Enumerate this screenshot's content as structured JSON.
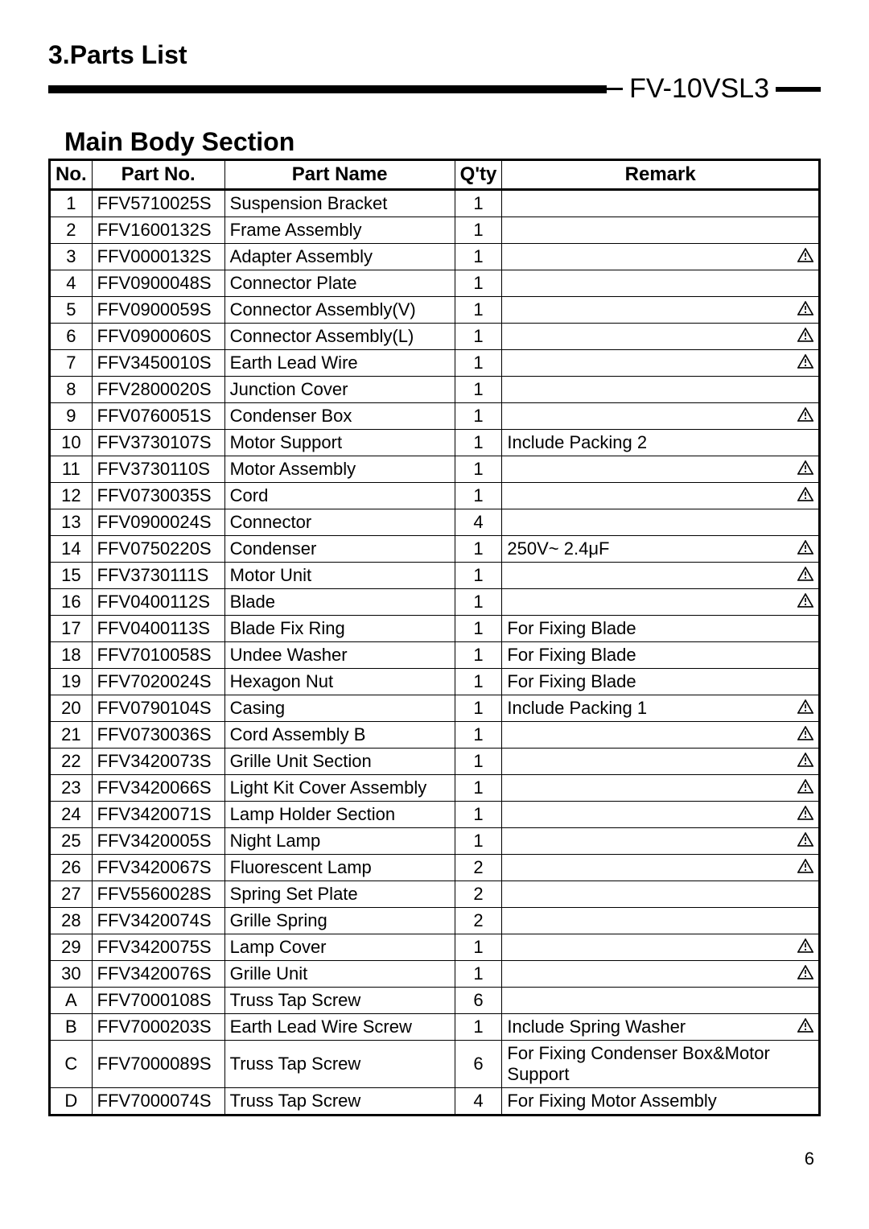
{
  "section_title": "3.Parts List",
  "model": "FV-10VSL3",
  "subsection_title": "Main Body Section",
  "page_number": "6",
  "headers": {
    "no": "No.",
    "partno": "Part No.",
    "name": "Part Name",
    "qty": "Q'ty",
    "remark": "Remark"
  },
  "rows": [
    {
      "no": "1",
      "partno": "FFV5710025S",
      "name": "Suspension Bracket",
      "qty": "1",
      "remark": "",
      "warn": false
    },
    {
      "no": "2",
      "partno": "FFV1600132S",
      "name": "Frame Assembly",
      "qty": "1",
      "remark": "",
      "warn": false
    },
    {
      "no": "3",
      "partno": "FFV0000132S",
      "name": "Adapter Assembly",
      "qty": "1",
      "remark": "",
      "warn": true
    },
    {
      "no": "4",
      "partno": "FFV0900048S",
      "name": "Connector Plate",
      "qty": "1",
      "remark": "",
      "warn": false
    },
    {
      "no": "5",
      "partno": "FFV0900059S",
      "name": "Connector Assembly(V)",
      "qty": "1",
      "remark": "",
      "warn": true
    },
    {
      "no": "6",
      "partno": "FFV0900060S",
      "name": "Connector Assembly(L)",
      "qty": "1",
      "remark": "",
      "warn": true
    },
    {
      "no": "7",
      "partno": "FFV3450010S",
      "name": "Earth Lead Wire",
      "qty": "1",
      "remark": "",
      "warn": true
    },
    {
      "no": "8",
      "partno": "FFV2800020S",
      "name": "Junction Cover",
      "qty": "1",
      "remark": "",
      "warn": false
    },
    {
      "no": "9",
      "partno": "FFV0760051S",
      "name": "Condenser Box",
      "qty": "1",
      "remark": "",
      "warn": true
    },
    {
      "no": "10",
      "partno": "FFV3730107S",
      "name": "Motor Support",
      "qty": "1",
      "remark": "Include Packing 2",
      "warn": false
    },
    {
      "no": "11",
      "partno": "FFV3730110S",
      "name": "Motor Assembly",
      "qty": "1",
      "remark": "",
      "warn": true
    },
    {
      "no": "12",
      "partno": "FFV0730035S",
      "name": "Cord",
      "qty": "1",
      "remark": "",
      "warn": true
    },
    {
      "no": "13",
      "partno": "FFV0900024S",
      "name": "Connector",
      "qty": "4",
      "remark": "",
      "warn": false
    },
    {
      "no": "14",
      "partno": "FFV0750220S",
      "name": "Condenser",
      "qty": "1",
      "remark": "250V~ 2.4μF",
      "warn": true
    },
    {
      "no": "15",
      "partno": "FFV3730111S",
      "name": "Motor Unit",
      "qty": "1",
      "remark": "",
      "warn": true
    },
    {
      "no": "16",
      "partno": "FFV0400112S",
      "name": "Blade",
      "qty": "1",
      "remark": "",
      "warn": true
    },
    {
      "no": "17",
      "partno": "FFV0400113S",
      "name": "Blade Fix Ring",
      "qty": "1",
      "remark": "For Fixing Blade",
      "warn": false
    },
    {
      "no": "18",
      "partno": "FFV7010058S",
      "name": "Undee Washer",
      "qty": "1",
      "remark": "For Fixing Blade",
      "warn": false
    },
    {
      "no": "19",
      "partno": "FFV7020024S",
      "name": "Hexagon Nut",
      "qty": "1",
      "remark": "For Fixing Blade",
      "warn": false
    },
    {
      "no": "20",
      "partno": "FFV0790104S",
      "name": "Casing",
      "qty": "1",
      "remark": "Include Packing 1",
      "warn": true
    },
    {
      "no": "21",
      "partno": "FFV0730036S",
      "name": "Cord Assembly B",
      "qty": "1",
      "remark": "",
      "warn": true
    },
    {
      "no": "22",
      "partno": "FFV3420073S",
      "name": "Grille Unit Section",
      "qty": "1",
      "remark": "",
      "warn": true
    },
    {
      "no": "23",
      "partno": "FFV3420066S",
      "name": "Light Kit Cover Assembly",
      "qty": "1",
      "remark": "",
      "warn": true
    },
    {
      "no": "24",
      "partno": "FFV3420071S",
      "name": "Lamp Holder Section",
      "qty": "1",
      "remark": "",
      "warn": true
    },
    {
      "no": "25",
      "partno": "FFV3420005S",
      "name": "Night Lamp",
      "qty": "1",
      "remark": "",
      "warn": true
    },
    {
      "no": "26",
      "partno": "FFV3420067S",
      "name": "Fluorescent Lamp",
      "qty": "2",
      "remark": "",
      "warn": true
    },
    {
      "no": "27",
      "partno": "FFV5560028S",
      "name": "Spring Set Plate",
      "qty": "2",
      "remark": "",
      "warn": false
    },
    {
      "no": "28",
      "partno": "FFV3420074S",
      "name": "Grille Spring",
      "qty": "2",
      "remark": "",
      "warn": false
    },
    {
      "no": "29",
      "partno": "FFV3420075S",
      "name": "Lamp Cover",
      "qty": "1",
      "remark": "",
      "warn": true
    },
    {
      "no": "30",
      "partno": "FFV3420076S",
      "name": "Grille Unit",
      "qty": "1",
      "remark": "",
      "warn": true
    },
    {
      "no": "A",
      "partno": "FFV7000108S",
      "name": "Truss Tap Screw",
      "qty": "6",
      "remark": "",
      "warn": false
    },
    {
      "no": "B",
      "partno": "FFV7000203S",
      "name": "Earth Lead Wire Screw",
      "qty": "1",
      "remark": "Include Spring Washer",
      "warn": true
    },
    {
      "no": "C",
      "partno": "FFV7000089S",
      "name": "Truss Tap Screw",
      "qty": "6",
      "remark": "For Fixing Condenser Box&Motor Support",
      "warn": false
    },
    {
      "no": "D",
      "partno": "FFV7000074S",
      "name": "Truss Tap Screw",
      "qty": "4",
      "remark": "For Fixing Motor Assembly",
      "warn": false
    }
  ]
}
